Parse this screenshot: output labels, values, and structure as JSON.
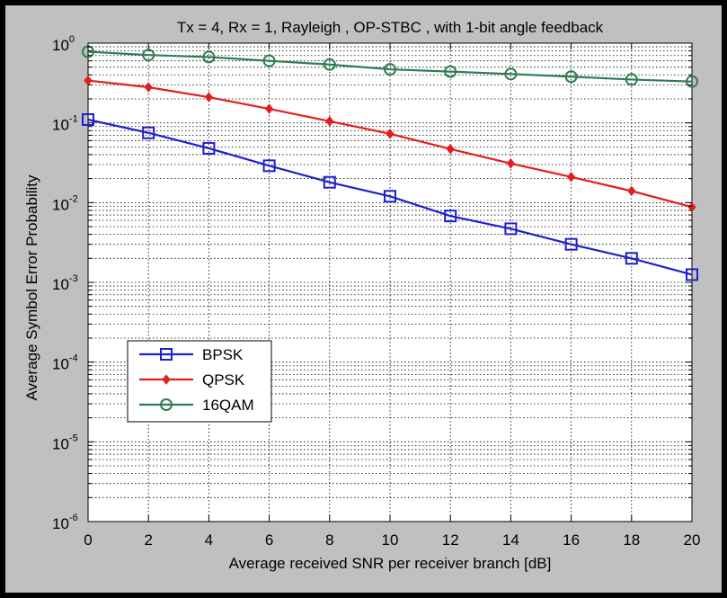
{
  "chart_data": {
    "type": "line",
    "title": "Tx = 4, Rx = 1, Rayleigh , OP-STBC , with 1-bit angle feedback",
    "xlabel": "Average received SNR per receiver branch [dB]",
    "ylabel": "Average Symbol Error Probability",
    "xlim": [
      0,
      20
    ],
    "ylim": [
      1e-06,
      1
    ],
    "yscale": "log",
    "grid": true,
    "legend_position": "lower-left",
    "x_ticks": [
      "0",
      "2",
      "4",
      "6",
      "8",
      "10",
      "12",
      "14",
      "16",
      "18",
      "20"
    ],
    "y_ticks": [
      {
        "base": "10",
        "exp": "0",
        "value": 1
      },
      {
        "base": "10",
        "exp": "-1",
        "value": 0.1
      },
      {
        "base": "10",
        "exp": "-2",
        "value": 0.01
      },
      {
        "base": "10",
        "exp": "-3",
        "value": 0.001
      },
      {
        "base": "10",
        "exp": "-4",
        "value": 0.0001
      },
      {
        "base": "10",
        "exp": "-5",
        "value": 1e-05
      },
      {
        "base": "10",
        "exp": "-6",
        "value": 1e-06
      }
    ],
    "x": [
      0,
      2,
      4,
      6,
      8,
      10,
      12,
      14,
      16,
      18,
      20
    ],
    "series": [
      {
        "name": "BPSK",
        "color": "#1f1fcf",
        "marker": "square",
        "values": [
          0.11,
          0.075,
          0.048,
          0.029,
          0.018,
          0.012,
          0.0068,
          0.0047,
          0.003,
          0.002,
          0.00125
        ]
      },
      {
        "name": "QPSK",
        "color": "#e02020",
        "marker": "diamond",
        "values": [
          0.34,
          0.28,
          0.21,
          0.15,
          0.105,
          0.073,
          0.047,
          0.031,
          0.021,
          0.014,
          0.0088
        ]
      },
      {
        "name": "16QAM",
        "color": "#2e7d52",
        "marker": "circle",
        "values": [
          0.78,
          0.71,
          0.67,
          0.6,
          0.54,
          0.47,
          0.44,
          0.41,
          0.38,
          0.35,
          0.33
        ]
      }
    ]
  }
}
